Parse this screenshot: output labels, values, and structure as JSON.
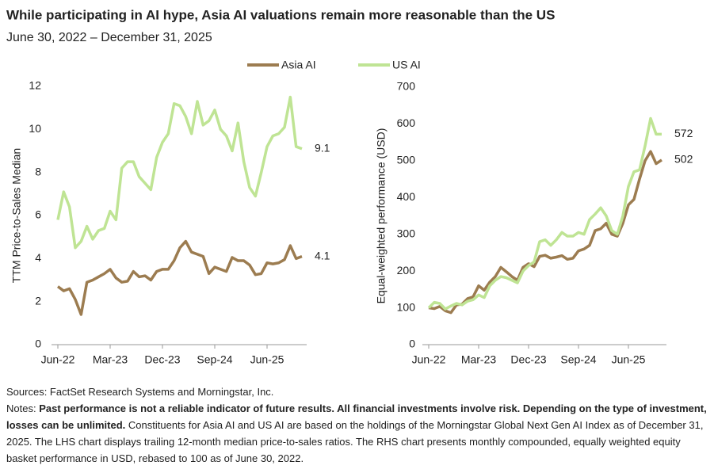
{
  "title": "While participating in AI hype, Asia AI valuations remain more reasonable than the US",
  "subtitle": "June 30, 2022 – December 31, 2025",
  "sources": "Sources: FactSet Research Systems and Morningstar, Inc.",
  "notes": {
    "label": "Notes:",
    "bold": "Past performance is not a reliable indicator of future results. All financial investments involve risk. Depending on the type of investment, losses can be unlimited.",
    "text": "Constituents for Asia AI and US AI are based on the holdings of the Morningstar Global Next Gen AI Index as of December 31, 2025. The LHS chart displays trailing 12-month median price-to-sales ratios. The RHS chart presents monthly compounded, equally weighted equity basket performance in USD, rebased to 100 as of June 30, 2022."
  },
  "chart_data": [
    {
      "type": "line",
      "y_label": "TTM Price-to-Sales Median",
      "ylim": [
        0,
        12
      ],
      "yticks": [
        0,
        2,
        4,
        6,
        8,
        10,
        12
      ],
      "categories": [
        "Jun-22",
        null,
        null,
        null,
        null,
        null,
        null,
        null,
        null,
        "Mar-23",
        null,
        null,
        null,
        null,
        null,
        null,
        null,
        null,
        "Dec-23",
        null,
        null,
        null,
        null,
        null,
        null,
        null,
        null,
        "Sep-24",
        null,
        null,
        null,
        null,
        null,
        null,
        null,
        null,
        "Jun-25",
        null,
        null,
        null,
        null,
        null,
        null
      ],
      "series": [
        {
          "name": "Asia AI",
          "color": "#9c7c50",
          "values": [
            2.7,
            2.5,
            2.6,
            2.1,
            1.4,
            2.9,
            3.0,
            3.15,
            3.3,
            3.5,
            3.1,
            2.9,
            2.95,
            3.4,
            3.15,
            3.2,
            3.0,
            3.4,
            3.5,
            3.5,
            3.9,
            4.5,
            4.8,
            4.3,
            4.2,
            4.1,
            3.3,
            3.6,
            3.5,
            3.4,
            4.05,
            3.9,
            3.9,
            3.7,
            3.25,
            3.3,
            3.8,
            3.75,
            3.8,
            3.95,
            4.6,
            4.0,
            4.1
          ]
        },
        {
          "name": "US AI",
          "color": "#bfe494",
          "values": [
            5.8,
            7.1,
            6.4,
            4.5,
            4.8,
            5.5,
            4.9,
            5.3,
            5.4,
            6.2,
            5.8,
            8.2,
            8.5,
            8.5,
            7.8,
            7.5,
            7.2,
            8.7,
            9.4,
            9.8,
            11.2,
            11.1,
            10.6,
            9.8,
            11.3,
            10.2,
            10.4,
            10.9,
            10.0,
            9.7,
            9.0,
            10.3,
            8.5,
            7.3,
            6.9,
            8.0,
            9.2,
            9.7,
            9.8,
            10.1,
            11.5,
            9.2,
            9.1
          ]
        }
      ]
    },
    {
      "type": "line",
      "y_label": "Equal-weighted performance (USD)",
      "ylim": [
        0,
        700
      ],
      "yticks": [
        0,
        100,
        200,
        300,
        400,
        500,
        600,
        700
      ],
      "categories": [
        "Jun-22",
        null,
        null,
        null,
        null,
        null,
        null,
        null,
        null,
        "Mar-23",
        null,
        null,
        null,
        null,
        null,
        null,
        null,
        null,
        "Dec-23",
        null,
        null,
        null,
        null,
        null,
        null,
        null,
        null,
        "Sep-24",
        null,
        null,
        null,
        null,
        null,
        null,
        null,
        null,
        "Jun-25",
        null,
        null,
        null,
        null,
        null,
        null
      ],
      "series": [
        {
          "color": "#9c7c50",
          "values": [
            100,
            98,
            104,
            92,
            87,
            108,
            110,
            125,
            130,
            160,
            148,
            170,
            185,
            210,
            198,
            185,
            175,
            210,
            220,
            212,
            240,
            243,
            235,
            238,
            242,
            232,
            235,
            255,
            260,
            270,
            310,
            315,
            330,
            300,
            295,
            330,
            380,
            395,
            450,
            500,
            525,
            492,
            502
          ]
        },
        {
          "color": "#bfe494",
          "values": [
            100,
            115,
            112,
            97,
            105,
            112,
            108,
            118,
            122,
            135,
            128,
            160,
            175,
            185,
            182,
            175,
            168,
            200,
            215,
            225,
            280,
            285,
            270,
            285,
            305,
            295,
            295,
            305,
            300,
            340,
            355,
            372,
            350,
            310,
            300,
            350,
            430,
            470,
            475,
            540,
            615,
            572,
            572
          ]
        }
      ]
    }
  ]
}
